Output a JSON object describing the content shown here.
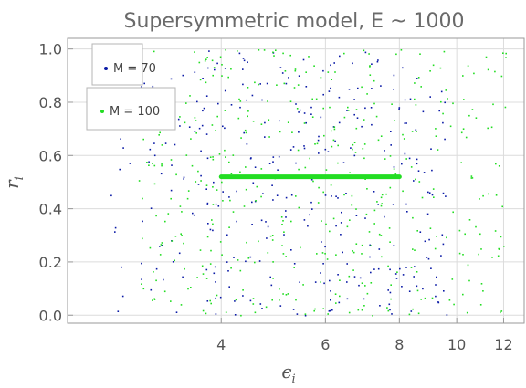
{
  "chart_data": {
    "type": "scatter",
    "title": "Supersymmetric model, E ~ 1000",
    "xlabel": "ϵ",
    "xlabel_sub": "i",
    "ylabel": "r",
    "ylabel_sub": "i",
    "x_scale": "log",
    "xlim": [
      2.2,
      13.0
    ],
    "ylim": [
      -0.03,
      1.04
    ],
    "x_ticks": [
      {
        "value": 4,
        "label": "4"
      },
      {
        "value": 6,
        "label": "6"
      },
      {
        "value": 8,
        "label": "8"
      },
      {
        "value": 10,
        "label": "10"
      },
      {
        "value": 12,
        "label": "12"
      }
    ],
    "y_ticks": [
      {
        "value": 0.0,
        "label": "0.0"
      },
      {
        "value": 0.2,
        "label": "0.2"
      },
      {
        "value": 0.4,
        "label": "0.4"
      },
      {
        "value": 0.6,
        "label": "0.6"
      },
      {
        "value": 0.8,
        "label": "0.8"
      },
      {
        "value": 1.0,
        "label": "1.0"
      }
    ],
    "grid": true,
    "legend_position": "top-left",
    "series": [
      {
        "name": "M = 70",
        "color": "#0a1aa6",
        "x_range": [
          2.6,
          9.6
        ],
        "y_range": [
          0.0,
          1.0
        ],
        "n_points": 350
      },
      {
        "name": "M = 100",
        "color": "#22dd22",
        "x_range": [
          2.9,
          12.2
        ],
        "y_range": [
          0.0,
          1.0
        ],
        "n_points": 450
      }
    ],
    "annotation": {
      "type": "horizontal-line",
      "x_range": [
        4.0,
        8.0
      ],
      "y": 0.52,
      "color": "#22dd22"
    }
  }
}
